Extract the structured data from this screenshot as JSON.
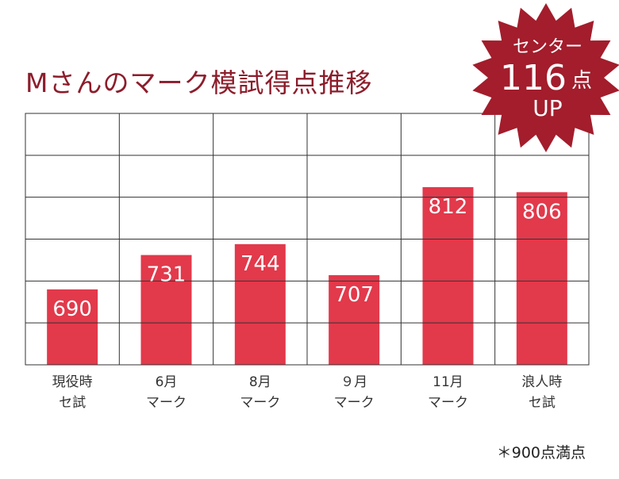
{
  "title": "Mさんのマーク模試得点推移",
  "note": "＊900点満点",
  "badge": {
    "line1": "センター",
    "number": "116",
    "unit": "点",
    "line3": "UP",
    "color": "#a31d2c"
  },
  "colors": {
    "bar": "#e2394b",
    "grid": "#333333",
    "title": "#8c1d2b"
  },
  "chart_data": {
    "type": "bar",
    "categories": [
      [
        "現役時",
        "セ試"
      ],
      [
        "6月",
        "マーク"
      ],
      [
        "8月",
        "マーク"
      ],
      [
        "９月",
        "マーク"
      ],
      [
        "11月",
        "マーク"
      ],
      [
        "浪人時",
        "セ試"
      ]
    ],
    "values": [
      690,
      731,
      744,
      707,
      812,
      806
    ],
    "ylim": [
      600,
      900
    ],
    "grid": true,
    "data_labels": true
  }
}
